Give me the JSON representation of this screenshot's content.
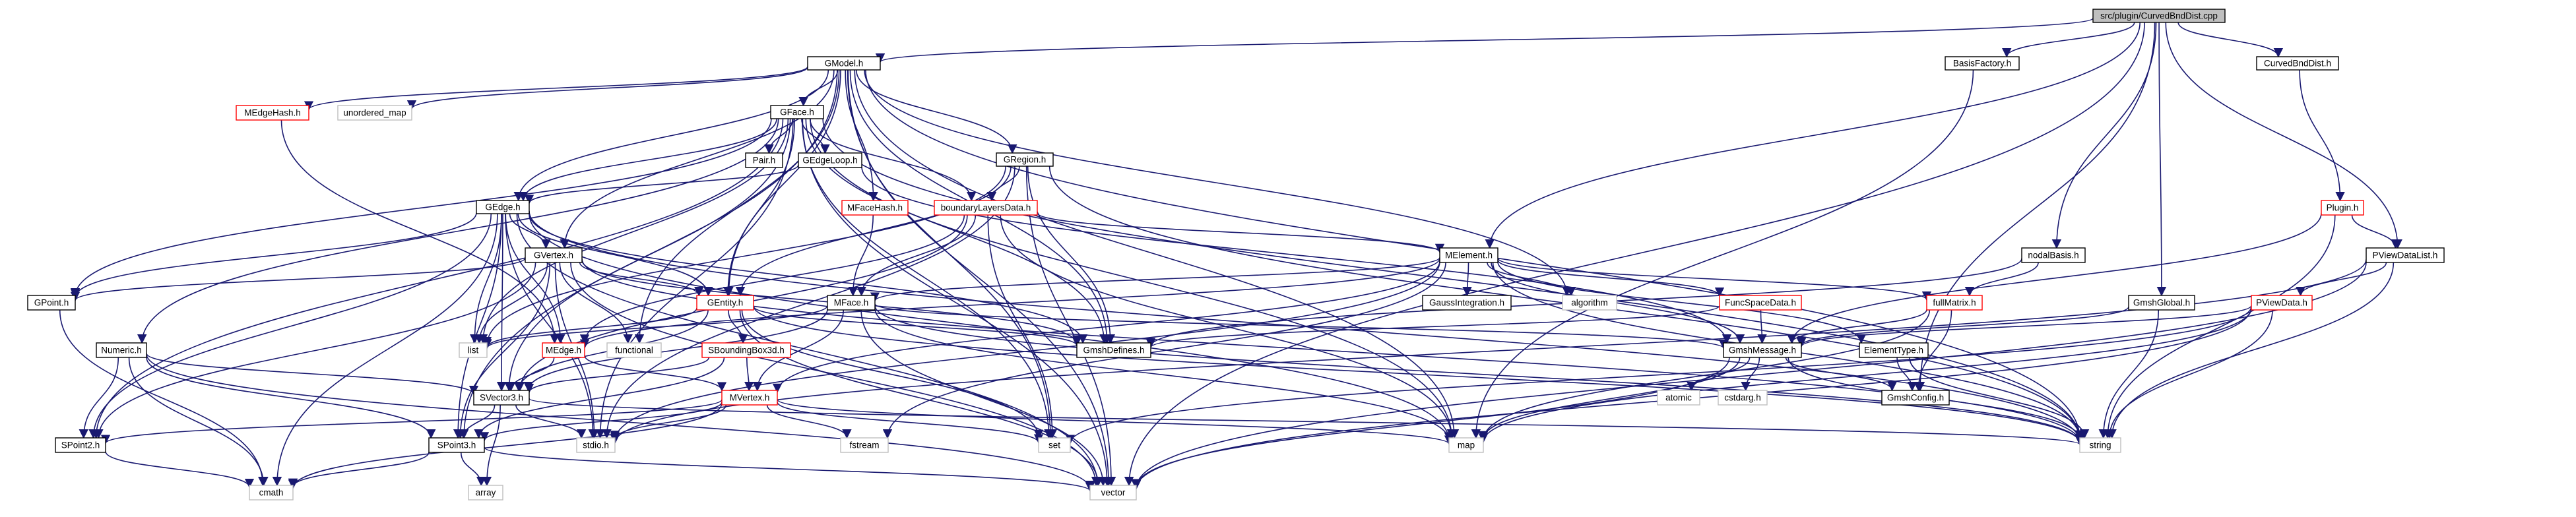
{
  "diagram": {
    "type": "include-dependency-graph",
    "colors": {
      "root_fill": "#bfbfbf",
      "node_border": "#000000",
      "incomplete_border": "#ff0000",
      "system_border": "#bfbfbf",
      "edge": "#191970"
    },
    "nodes": [
      {
        "id": "root",
        "label": "src/plugin/CurvedBndDist.cpp",
        "style": "root"
      },
      {
        "id": "GModel",
        "label": "GModel.h",
        "style": "normal"
      },
      {
        "id": "BasisFactory",
        "label": "BasisFactory.h",
        "style": "normal"
      },
      {
        "id": "CurvedBndDist",
        "label": "CurvedBndDist.h",
        "style": "normal"
      },
      {
        "id": "MEdgeHash",
        "label": "MEdgeHash.h",
        "style": "red"
      },
      {
        "id": "unordered_map",
        "label": "unordered_map",
        "style": "system"
      },
      {
        "id": "GFace",
        "label": "GFace.h",
        "style": "normal"
      },
      {
        "id": "Pair",
        "label": "Pair.h",
        "style": "normal"
      },
      {
        "id": "GEdgeLoop",
        "label": "GEdgeLoop.h",
        "style": "normal"
      },
      {
        "id": "GRegion",
        "label": "GRegion.h",
        "style": "normal"
      },
      {
        "id": "MFaceHash",
        "label": "MFaceHash.h",
        "style": "red"
      },
      {
        "id": "boundaryLayersData",
        "label": "boundaryLayersData.h",
        "style": "red"
      },
      {
        "id": "Plugin",
        "label": "Plugin.h",
        "style": "red"
      },
      {
        "id": "GEdge",
        "label": "GEdge.h",
        "style": "normal"
      },
      {
        "id": "nodalBasis",
        "label": "nodalBasis.h",
        "style": "normal"
      },
      {
        "id": "PViewDataList",
        "label": "PViewDataList.h",
        "style": "normal"
      },
      {
        "id": "GVertex",
        "label": "GVertex.h",
        "style": "normal"
      },
      {
        "id": "MElement",
        "label": "MElement.h",
        "style": "normal"
      },
      {
        "id": "GPoint",
        "label": "GPoint.h",
        "style": "normal"
      },
      {
        "id": "GEntity",
        "label": "GEntity.h",
        "style": "red"
      },
      {
        "id": "MFace",
        "label": "MFace.h",
        "style": "normal"
      },
      {
        "id": "GaussIntegration",
        "label": "GaussIntegration.h",
        "style": "normal"
      },
      {
        "id": "algorithm",
        "label": "algorithm",
        "style": "system"
      },
      {
        "id": "FuncSpaceData",
        "label": "FuncSpaceData.h",
        "style": "red"
      },
      {
        "id": "fullMatrix",
        "label": "fullMatrix.h",
        "style": "red"
      },
      {
        "id": "GmshGlobal",
        "label": "GmshGlobal.h",
        "style": "normal"
      },
      {
        "id": "PViewData",
        "label": "PViewData.h",
        "style": "red"
      },
      {
        "id": "Numeric",
        "label": "Numeric.h",
        "style": "normal"
      },
      {
        "id": "list",
        "label": "list",
        "style": "system"
      },
      {
        "id": "MEdge",
        "label": "MEdge.h",
        "style": "red"
      },
      {
        "id": "functional",
        "label": "functional",
        "style": "system"
      },
      {
        "id": "SBoundingBox3d",
        "label": "SBoundingBox3d.h",
        "style": "red"
      },
      {
        "id": "GmshDefines",
        "label": "GmshDefines.h",
        "style": "normal"
      },
      {
        "id": "GmshMessage",
        "label": "GmshMessage.h",
        "style": "normal"
      },
      {
        "id": "ElementType",
        "label": "ElementType.h",
        "style": "normal"
      },
      {
        "id": "SVector3",
        "label": "SVector3.h",
        "style": "normal"
      },
      {
        "id": "MVertex",
        "label": "MVertex.h",
        "style": "red"
      },
      {
        "id": "atomic",
        "label": "atomic",
        "style": "system"
      },
      {
        "id": "cstdarg",
        "label": "cstdarg.h",
        "style": "system"
      },
      {
        "id": "GmshConfig",
        "label": "GmshConfig.h",
        "style": "normal"
      },
      {
        "id": "SPoint2",
        "label": "SPoint2.h",
        "style": "normal"
      },
      {
        "id": "SPoint3",
        "label": "SPoint3.h",
        "style": "normal"
      },
      {
        "id": "stdio",
        "label": "stdio.h",
        "style": "system"
      },
      {
        "id": "fstream",
        "label": "fstream",
        "style": "system"
      },
      {
        "id": "set",
        "label": "set",
        "style": "system"
      },
      {
        "id": "map",
        "label": "map",
        "style": "system"
      },
      {
        "id": "string",
        "label": "string",
        "style": "system"
      },
      {
        "id": "cmath",
        "label": "cmath",
        "style": "system"
      },
      {
        "id": "array",
        "label": "array",
        "style": "system"
      },
      {
        "id": "vector",
        "label": "vector",
        "style": "system"
      }
    ],
    "edges": [
      [
        "root",
        "GModel"
      ],
      [
        "root",
        "BasisFactory"
      ],
      [
        "root",
        "CurvedBndDist"
      ],
      [
        "root",
        "MElement"
      ],
      [
        "root",
        "nodalBasis"
      ],
      [
        "root",
        "GmshGlobal"
      ],
      [
        "root",
        "PViewDataList"
      ],
      [
        "root",
        "GmshConfig"
      ],
      [
        "root",
        "vector"
      ],
      [
        "GModel",
        "MEdgeHash"
      ],
      [
        "GModel",
        "unordered_map"
      ],
      [
        "GModel",
        "GFace"
      ],
      [
        "GModel",
        "GRegion"
      ],
      [
        "GModel",
        "MFaceHash"
      ],
      [
        "GModel",
        "GEdge"
      ],
      [
        "GModel",
        "GVertex"
      ],
      [
        "GModel",
        "GEntity"
      ],
      [
        "GModel",
        "SPoint3"
      ],
      [
        "GModel",
        "functional"
      ],
      [
        "GModel",
        "map"
      ],
      [
        "GModel",
        "set"
      ],
      [
        "GModel",
        "string"
      ],
      [
        "GModel",
        "vector"
      ],
      [
        "GModel",
        "algorithm"
      ],
      [
        "GModel",
        "GmshDefines"
      ],
      [
        "BasisFactory",
        "map"
      ],
      [
        "CurvedBndDist",
        "Plugin"
      ],
      [
        "MEdgeHash",
        "MEdge"
      ],
      [
        "MFaceHash",
        "MFace"
      ],
      [
        "GFace",
        "Pair"
      ],
      [
        "GFace",
        "GEdgeLoop"
      ],
      [
        "GFace",
        "boundaryLayersData"
      ],
      [
        "GFace",
        "GEdge"
      ],
      [
        "GFace",
        "GPoint"
      ],
      [
        "GFace",
        "GEntity"
      ],
      [
        "GFace",
        "Numeric"
      ],
      [
        "GFace",
        "list"
      ],
      [
        "GFace",
        "SPoint2"
      ],
      [
        "GFace",
        "SVector3"
      ],
      [
        "GFace",
        "GmshDefines"
      ],
      [
        "GFace",
        "string"
      ],
      [
        "GFace",
        "map"
      ],
      [
        "GFace",
        "vector"
      ],
      [
        "GFace",
        "set"
      ],
      [
        "GFace",
        "stdio"
      ],
      [
        "GEdgeLoop",
        "GEdge"
      ],
      [
        "GEdgeLoop",
        "GmshMessage"
      ],
      [
        "GRegion",
        "GEntity"
      ],
      [
        "GRegion",
        "boundaryLayersData"
      ],
      [
        "GRegion",
        "list"
      ],
      [
        "GRegion",
        "GmshDefines"
      ],
      [
        "GRegion",
        "string"
      ],
      [
        "GRegion",
        "stdio"
      ],
      [
        "GRegion",
        "vector"
      ],
      [
        "boundaryLayersData",
        "MElement"
      ],
      [
        "boundaryLayersData",
        "MFace"
      ],
      [
        "boundaryLayersData",
        "MEdge"
      ],
      [
        "boundaryLayersData",
        "SVector3"
      ],
      [
        "boundaryLayersData",
        "set"
      ],
      [
        "boundaryLayersData",
        "map"
      ],
      [
        "Plugin",
        "PViewDataList"
      ],
      [
        "Plugin",
        "GmshMessage"
      ],
      [
        "Plugin",
        "string"
      ],
      [
        "GEdge",
        "GVertex"
      ],
      [
        "GEdge",
        "GEntity"
      ],
      [
        "GEdge",
        "GPoint"
      ],
      [
        "GEdge",
        "SPoint2"
      ],
      [
        "GEdge",
        "SPoint3"
      ],
      [
        "GEdge",
        "SVector3"
      ],
      [
        "GEdge",
        "list"
      ],
      [
        "GEdge",
        "MEdge"
      ],
      [
        "GEdge",
        "GmshDefines"
      ],
      [
        "GEdge",
        "string"
      ],
      [
        "GEdge",
        "stdio"
      ],
      [
        "GEdge",
        "vector"
      ],
      [
        "GEdge",
        "cmath"
      ],
      [
        "GEdge",
        "map"
      ],
      [
        "nodalBasis",
        "fullMatrix"
      ],
      [
        "nodalBasis",
        "GmshDefines"
      ],
      [
        "PViewDataList",
        "PViewData"
      ],
      [
        "PViewDataList",
        "string"
      ],
      [
        "PViewDataList",
        "vector"
      ],
      [
        "PViewDataList",
        "stdio"
      ],
      [
        "GVertex",
        "GEntity"
      ],
      [
        "GVertex",
        "GPoint"
      ],
      [
        "GVertex",
        "SPoint2"
      ],
      [
        "GVertex",
        "SPoint3"
      ],
      [
        "GVertex",
        "list"
      ],
      [
        "GVertex",
        "GmshDefines"
      ],
      [
        "GVertex",
        "functional"
      ],
      [
        "GVertex",
        "string"
      ],
      [
        "GVertex",
        "stdio"
      ],
      [
        "GVertex",
        "vector"
      ],
      [
        "MElement",
        "GaussIntegration"
      ],
      [
        "MElement",
        "algorithm"
      ],
      [
        "MElement",
        "FuncSpaceData"
      ],
      [
        "MElement",
        "MFace"
      ],
      [
        "MElement",
        "MEdge"
      ],
      [
        "MElement",
        "MVertex"
      ],
      [
        "MElement",
        "fullMatrix"
      ],
      [
        "MElement",
        "GmshMessage"
      ],
      [
        "MElement",
        "ElementType"
      ],
      [
        "MElement",
        "string"
      ],
      [
        "MElement",
        "fstream"
      ],
      [
        "MElement",
        "stdio"
      ],
      [
        "GPoint",
        "cmath"
      ],
      [
        "GEntity",
        "list"
      ],
      [
        "GEntity",
        "SBoundingBox3d"
      ],
      [
        "GEntity",
        "GmshDefines"
      ],
      [
        "GEntity",
        "SVector3"
      ],
      [
        "GEntity",
        "string"
      ],
      [
        "GEntity",
        "vector"
      ],
      [
        "GEntity",
        "set"
      ],
      [
        "MFace",
        "MVertex"
      ],
      [
        "MFace",
        "SVector3"
      ],
      [
        "MFace",
        "list"
      ],
      [
        "MFace",
        "GmshMessage"
      ],
      [
        "MFace",
        "vector"
      ],
      [
        "MFace",
        "map"
      ],
      [
        "MFace",
        "string"
      ],
      [
        "FuncSpaceData",
        "GmshDefines"
      ],
      [
        "FuncSpaceData",
        "GmshMessage"
      ],
      [
        "fullMatrix",
        "GmshMessage"
      ],
      [
        "fullMatrix",
        "GmshConfig"
      ],
      [
        "fullMatrix",
        "map"
      ],
      [
        "GmshGlobal",
        "GmshMessage"
      ],
      [
        "GmshGlobal",
        "string"
      ],
      [
        "PViewData",
        "GmshMessage"
      ],
      [
        "PViewData",
        "string"
      ],
      [
        "PViewData",
        "map"
      ],
      [
        "PViewData",
        "vector"
      ],
      [
        "PViewData",
        "set"
      ],
      [
        "Numeric",
        "SPoint2"
      ],
      [
        "Numeric",
        "SPoint3"
      ],
      [
        "Numeric",
        "SVector3"
      ],
      [
        "Numeric",
        "cmath"
      ],
      [
        "Numeric",
        "vector"
      ],
      [
        "MEdge",
        "SVector3"
      ],
      [
        "MEdge",
        "MVertex"
      ],
      [
        "SBoundingBox3d",
        "SPoint3"
      ],
      [
        "SBoundingBox3d",
        "SVector3"
      ],
      [
        "SBoundingBox3d",
        "MVertex"
      ],
      [
        "GmshMessage",
        "atomic"
      ],
      [
        "GmshMessage",
        "cstdarg"
      ],
      [
        "GmshMessage",
        "GmshConfig"
      ],
      [
        "GmshMessage",
        "string"
      ],
      [
        "GmshMessage",
        "map"
      ],
      [
        "GmshMessage",
        "vector"
      ],
      [
        "ElementType",
        "string"
      ],
      [
        "ElementType",
        "GmshConfig"
      ],
      [
        "SVector3",
        "SPoint3"
      ],
      [
        "SVector3",
        "stdio"
      ],
      [
        "SVector3",
        "string"
      ],
      [
        "SVector3",
        "array"
      ],
      [
        "MVertex",
        "SPoint2"
      ],
      [
        "MVertex",
        "SPoint3"
      ],
      [
        "MVertex",
        "set"
      ],
      [
        "MVertex",
        "map"
      ],
      [
        "MVertex",
        "stdio"
      ],
      [
        "MVertex",
        "cmath"
      ],
      [
        "MVertex",
        "fstream"
      ],
      [
        "SPoint2",
        "cmath"
      ],
      [
        "SPoint3",
        "cmath"
      ],
      [
        "SPoint3",
        "array"
      ],
      [
        "SPoint3",
        "vector"
      ]
    ]
  }
}
